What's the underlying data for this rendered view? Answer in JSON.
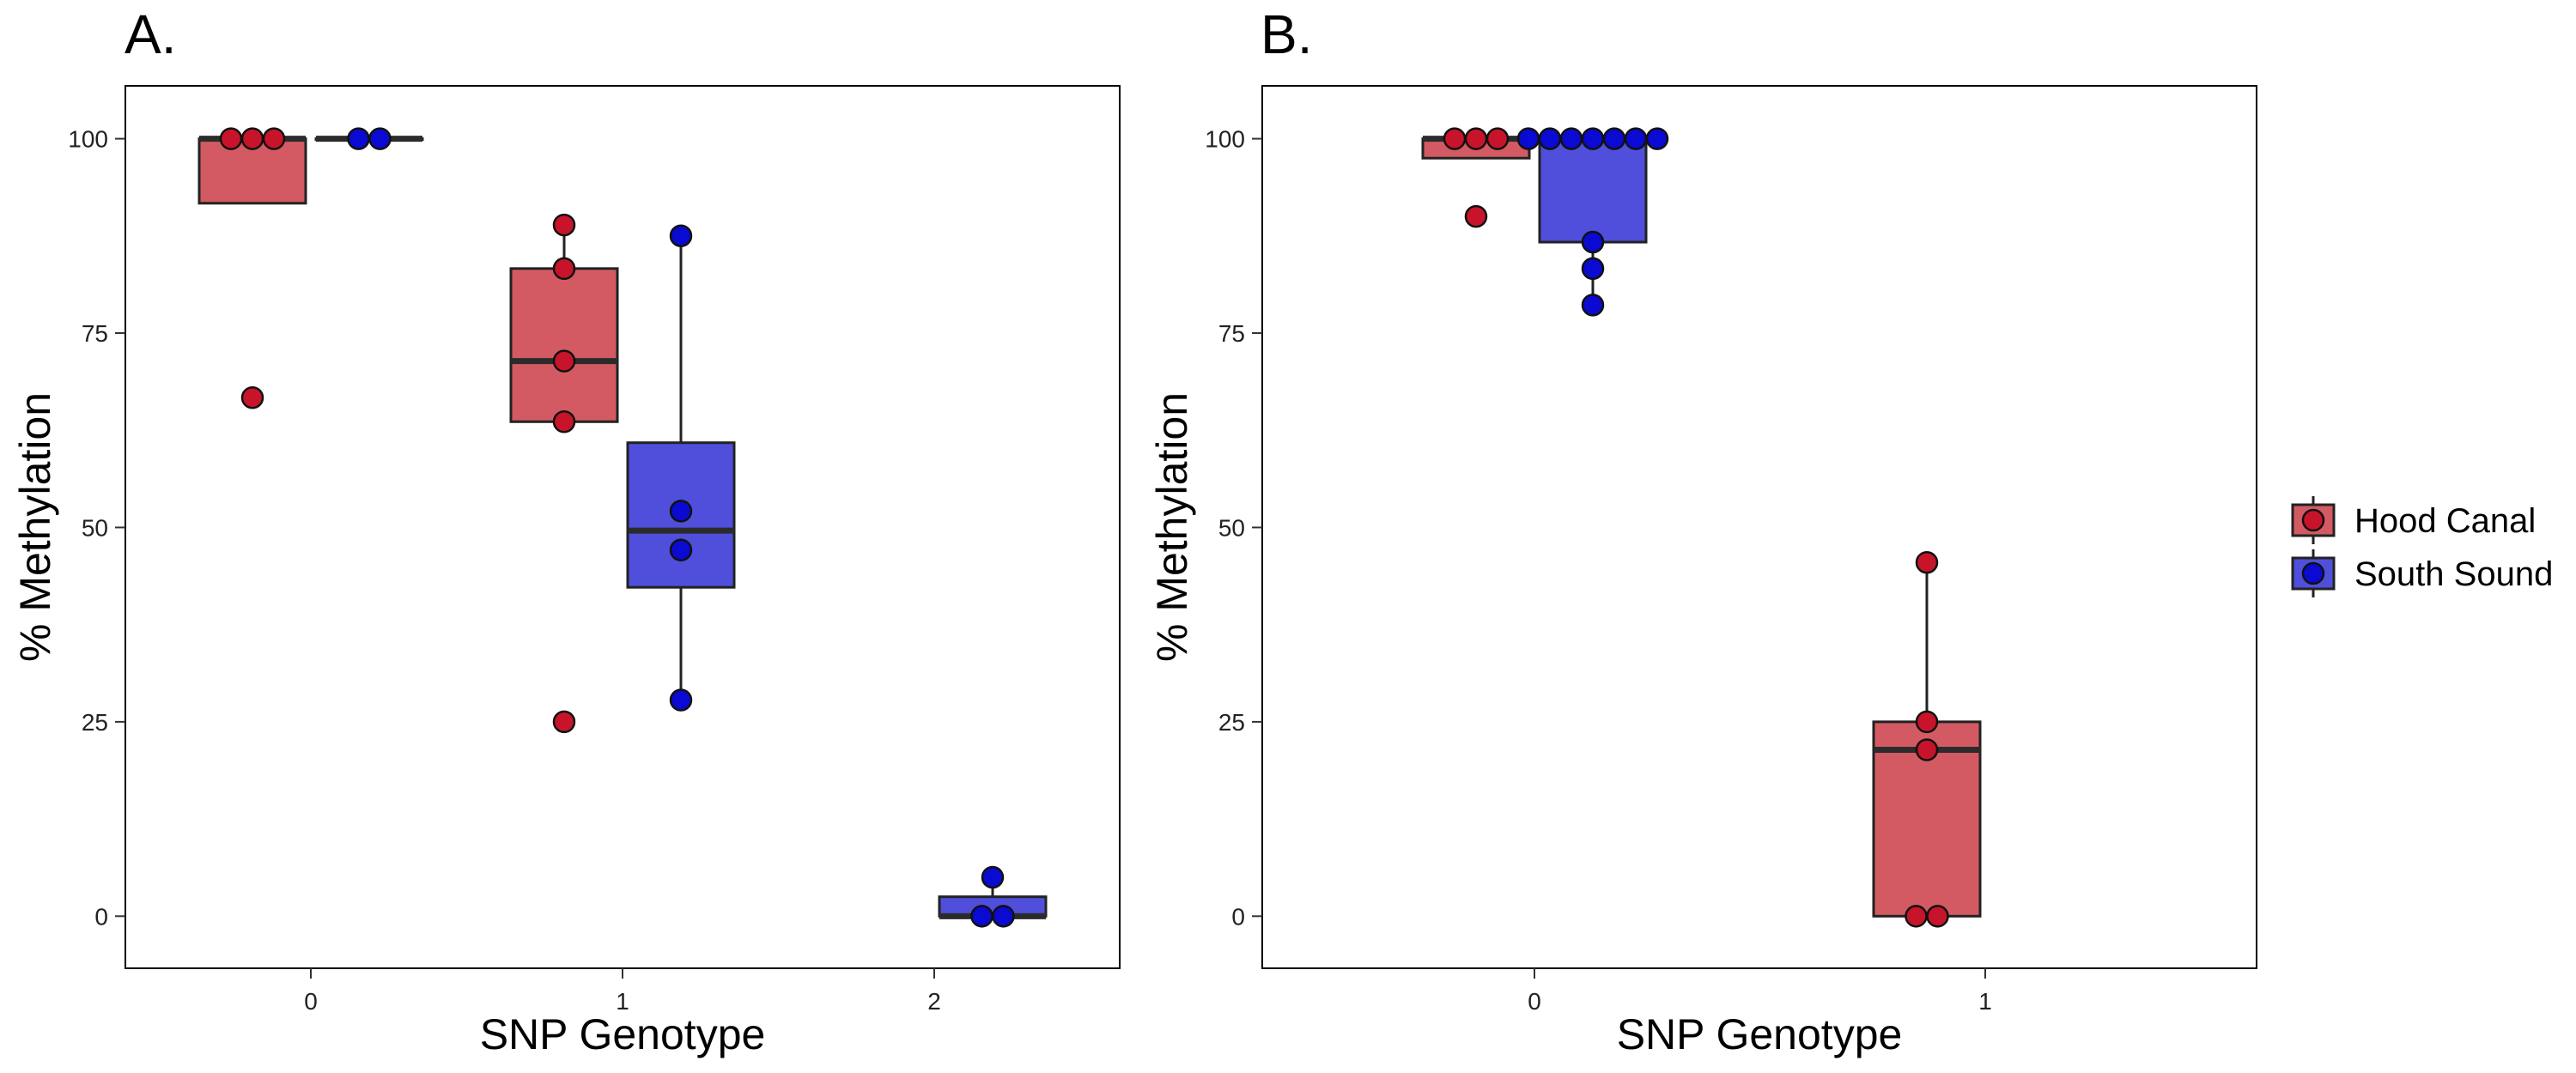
{
  "chart_data": [
    {
      "type": "boxplot",
      "panel_label": "A.",
      "xlabel": "SNP Genotype",
      "ylabel": "% Methylation",
      "categories": [
        "0",
        "1",
        "2"
      ],
      "yticks": [
        0,
        25,
        50,
        75,
        100
      ],
      "ylim": [
        -6.7,
        106.8
      ],
      "grid": false,
      "series": [
        {
          "name": "Hood Canal",
          "boxes": [
            {
              "category": "0",
              "q1": 91.7,
              "median": 100,
              "q3": 100,
              "whisker_low": 91.7,
              "whisker_high": 100,
              "points": [
                100,
                100,
                100,
                66.7
              ]
            },
            {
              "category": "1",
              "q1": 63.6,
              "median": 71.4,
              "q3": 83.3,
              "whisker_low": 63.6,
              "whisker_high": 88.9,
              "points": [
                88.9,
                83.3,
                71.4,
                63.6,
                25.0
              ]
            }
          ]
        },
        {
          "name": "South Sound",
          "boxes": [
            {
              "category": "0",
              "q1": 100,
              "median": 100,
              "q3": 100,
              "whisker_low": 100,
              "whisker_high": 100,
              "points": [
                100,
                100
              ]
            },
            {
              "category": "1",
              "q1": 42.3,
              "median": 49.6,
              "q3": 60.9,
              "whisker_low": 27.8,
              "whisker_high": 87.5,
              "points": [
                87.5,
                52.1,
                47.1,
                27.8
              ]
            },
            {
              "category": "2",
              "q1": 0,
              "median": 0,
              "q3": 2.5,
              "whisker_low": 0,
              "whisker_high": 5.0,
              "points": [
                5.0,
                0,
                0
              ]
            }
          ]
        }
      ]
    },
    {
      "type": "boxplot",
      "panel_label": "B.",
      "xlabel": "SNP Genotype",
      "ylabel": "% Methylation",
      "categories": [
        "0",
        "1"
      ],
      "yticks": [
        0,
        25,
        50,
        75,
        100
      ],
      "ylim": [
        -6.7,
        106.8
      ],
      "grid": false,
      "series": [
        {
          "name": "Hood Canal",
          "boxes": [
            {
              "category": "0",
              "q1": 97.5,
              "median": 100,
              "q3": 100,
              "whisker_low": 97.5,
              "whisker_high": 100,
              "points": [
                100,
                100,
                100,
                90.0
              ]
            },
            {
              "category": "1",
              "q1": 0,
              "median": 21.4,
              "q3": 25.0,
              "whisker_low": 0,
              "whisker_high": 45.5,
              "points": [
                45.5,
                25.0,
                21.4,
                0,
                0
              ]
            }
          ]
        },
        {
          "name": "South Sound",
          "boxes": [
            {
              "category": "0",
              "q1": 86.7,
              "median": 100,
              "q3": 100,
              "whisker_low": 78.6,
              "whisker_high": 100,
              "points": [
                100,
                100,
                100,
                100,
                100,
                100,
                100,
                86.7,
                83.3,
                78.6
              ]
            }
          ]
        }
      ]
    }
  ],
  "legend": {
    "placement": "right",
    "entries": [
      {
        "label": "Hood Canal",
        "fill": "#d35a63",
        "point": "#c8142a"
      },
      {
        "label": "South Sound",
        "fill": "#4f4fdc",
        "point": "#0a0ad2"
      }
    ]
  },
  "colors": {
    "hood_canal_box": "#d35a63",
    "hood_canal_point": "#c8142a",
    "south_sound_box": "#4f4fdc",
    "south_sound_point": "#0a0ad2"
  }
}
